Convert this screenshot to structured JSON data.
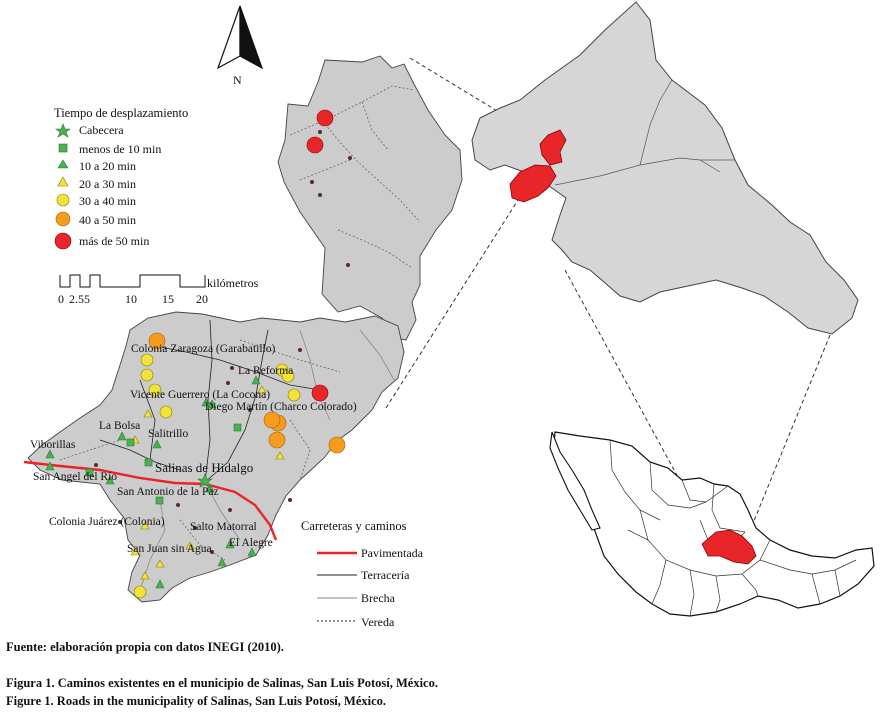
{
  "north_label": "N",
  "legend": {
    "title": "Tiempo de desplazamiento",
    "items": [
      {
        "label": "Cabecera",
        "symbol": "star",
        "color": "#4caf50"
      },
      {
        "label": "menos de 10 min",
        "symbol": "square",
        "color": "#4caf50"
      },
      {
        "label": "10 a 20 min",
        "symbol": "triangle",
        "color": "#4caf50"
      },
      {
        "label": "20 a 30 min",
        "symbol": "triangle",
        "color": "#f2e23a"
      },
      {
        "label": "30 a 40 min",
        "symbol": "circle-small",
        "color": "#f2e23a"
      },
      {
        "label": "40 a 50 min",
        "symbol": "circle-medium",
        "color": "#f39c1e"
      },
      {
        "label": "más de 50 min",
        "symbol": "circle-large",
        "color": "#e8262a"
      }
    ]
  },
  "scale": {
    "unit": "kilómetros",
    "ticks": [
      "0",
      "2.55",
      "10",
      "15",
      "20"
    ]
  },
  "roads_legend": {
    "title": "Carreteras y caminos",
    "items": [
      {
        "label": "Pavimentada",
        "style": "solid-thick",
        "color": "#e8262a"
      },
      {
        "label": "Terracería",
        "style": "solid",
        "color": "#222222"
      },
      {
        "label": "Brecha",
        "style": "solid",
        "color": "#888888"
      },
      {
        "label": "Vereda",
        "style": "dotted",
        "color": "#222222"
      }
    ]
  },
  "places": {
    "colonia_zaragoza": "Colonia Zaragoza (Garabatillo)",
    "la_reforma": "La Reforma",
    "vicente_guerrero": "Vicente Guerrero (La Cocona)",
    "diego_martin": "Diego Martín (Charco Colorado)",
    "la_bolsa": "La Bolsa",
    "salitrillo": "Salitrillo",
    "viborillas": "Viborillas",
    "salinas": "Salinas de Hidalgo",
    "san_angel": "San Angel del Río",
    "san_antonio": "San Antonio de la Paz",
    "colonia_juarez": "Colonia Juárez (Colonia)",
    "salto_matorral": "Salto Matorral",
    "san_juan": "San Juan sin Agua",
    "el_alegre": "El Alegre"
  },
  "colors": {
    "municipality_fill": "#cccccc",
    "state_fill": "#d6d6d6",
    "highlight": "#e8262a"
  },
  "source_note": "Fuente: elaboración propia con datos INEGI (2010).",
  "caption_es": "Figura 1. Caminos existentes en el municipio de Salinas, San Luis Potosí, México.",
  "caption_en": "Figure 1. Roads in the municipality of Salinas, San Luis Potosí, México."
}
